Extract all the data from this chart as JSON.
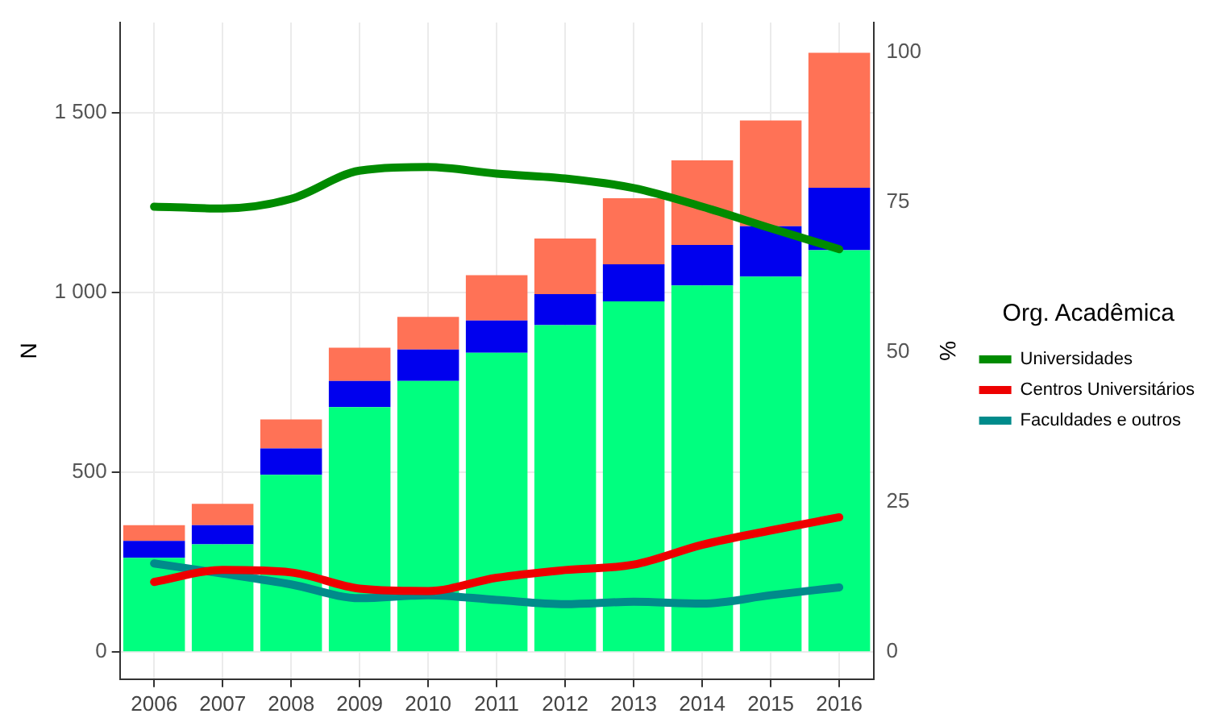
{
  "chart_data": {
    "type": "bar",
    "stacked": true,
    "ylabel": "N",
    "y2label": "%",
    "legend_title": "Org. Acadêmica",
    "legend": "right",
    "grid": true,
    "categories": [
      "2006",
      "2007",
      "2008",
      "2009",
      "2010",
      "2011",
      "2012",
      "2013",
      "2014",
      "2015",
      "2016"
    ],
    "ylim": [
      -75,
      1750
    ],
    "yticks": [
      0,
      500,
      {
        "value": 1000,
        "label": "1 000"
      },
      {
        "value": 1500,
        "label": "1 500"
      }
    ],
    "y2lim": [
      -4.5,
      105
    ],
    "y2ticks": [
      0,
      25,
      50,
      75,
      100
    ],
    "series": [
      {
        "type": "bar",
        "color": "#00ff7f",
        "values": [
          262,
          300,
          493,
          681,
          754,
          832,
          909,
          975,
          1019,
          1044,
          1117
        ]
      },
      {
        "type": "bar",
        "color": "#0000ee",
        "values": [
          47,
          53,
          73,
          73,
          87,
          90,
          86,
          103,
          113,
          140,
          174
        ]
      },
      {
        "type": "bar",
        "color": "#ff7256",
        "values": [
          44,
          59,
          81,
          92,
          91,
          126,
          155,
          184,
          235,
          294,
          375
        ]
      },
      {
        "type": "line",
        "axis": "y2",
        "name": "Universidades",
        "color": "#008b00",
        "values": [
          74.3,
          74,
          75.6,
          80.3,
          80.9,
          79.8,
          79,
          77.4,
          74.3,
          70.7,
          67.2
        ]
      },
      {
        "type": "line",
        "axis": "y2",
        "name": "Centros Universitários",
        "color": "#ee0000",
        "values": [
          11.7,
          13.7,
          13.3,
          10.6,
          10.2,
          12.4,
          13.7,
          14.6,
          17.9,
          20.3,
          22.5
        ]
      },
      {
        "type": "line",
        "axis": "y2",
        "name": "Faculdades e outros",
        "color": "#008b8b",
        "values": [
          14.8,
          13.1,
          11.3,
          9.0,
          9.5,
          8.7,
          8.0,
          8.4,
          8.1,
          9.5,
          10.8
        ]
      }
    ]
  }
}
